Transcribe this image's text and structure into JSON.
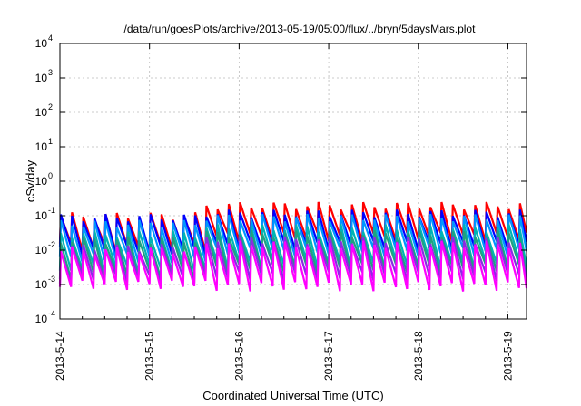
{
  "chart_data": {
    "type": "line",
    "title": "/data/run/goesPlots/archive/2013-05-19/05:00/flux/../bryn/5daysMars.plot",
    "xlabel": "Coordinated Universal Time (UTC)",
    "ylabel": "cSv/day",
    "yscale": "log",
    "ylim": [
      0.0001,
      10000
    ],
    "y_ticks": [
      {
        "base": "10",
        "exp": "-4"
      },
      {
        "base": "10",
        "exp": "-3"
      },
      {
        "base": "10",
        "exp": "-2"
      },
      {
        "base": "10",
        "exp": "-1"
      },
      {
        "base": "10",
        "exp": "0"
      },
      {
        "base": "10",
        "exp": "1"
      },
      {
        "base": "10",
        "exp": "2"
      },
      {
        "base": "10",
        "exp": "3"
      },
      {
        "base": "10",
        "exp": "4"
      }
    ],
    "x_range_days": [
      "2013-5-14 00:00",
      "2013-5-19 05:00"
    ],
    "x_ticks": [
      "2013-5-14",
      "2013-5-15",
      "2013-5-16",
      "2013-5-17",
      "2013-5-18",
      "2013-5-19"
    ],
    "grid": true,
    "legend": "none",
    "pattern": "sawtooth, 8 cycles per day; each cycle jumps to a peak then decays roughly a decade",
    "series": [
      {
        "color": "#ff0000",
        "peak_early": 0.1,
        "peak_late": 0.2,
        "trough_early": 0.012,
        "trough_late": 0.025
      },
      {
        "color": "#0000ff",
        "peak_early": 0.09,
        "peak_late": 0.12,
        "trough_early": 0.01,
        "trough_late": 0.014
      },
      {
        "color": "#0096ff",
        "peak_early": 0.06,
        "peak_late": 0.09,
        "trough_early": 0.006,
        "trough_late": 0.009
      },
      {
        "color": "#00b4b4",
        "peak_early": 0.03,
        "peak_late": 0.045,
        "trough_early": 0.003,
        "trough_late": 0.004
      },
      {
        "color": "#20a080",
        "peak_early": 0.02,
        "peak_late": 0.03,
        "trough_early": 0.002,
        "trough_late": 0.003
      },
      {
        "color": "#8a2be2",
        "peak_early": 0.012,
        "peak_late": 0.02,
        "trough_early": 0.0015,
        "trough_late": 0.0018
      },
      {
        "color": "#ff00ff",
        "peak_early": 0.01,
        "peak_late": 0.015,
        "trough_early": 0.001,
        "trough_late": 0.0009
      }
    ]
  }
}
